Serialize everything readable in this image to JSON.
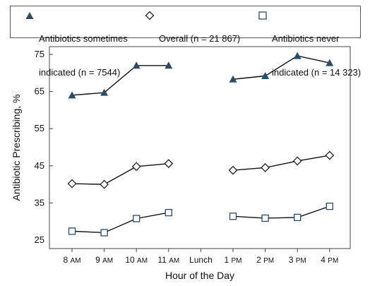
{
  "legend": {
    "sometimes": {
      "line1": "Antibiotics sometimes",
      "line2": "indicated (n = 7544)"
    },
    "overall": {
      "line1": "Overall (n = 21 867)"
    },
    "never": {
      "line1": "Antibiotics never",
      "line2": "indicated (n = 14 323)"
    }
  },
  "chart_data": {
    "type": "line",
    "xlabel": "Hour of the Day",
    "ylabel": "Antibiotic Prescribing, %",
    "categories": [
      "8 AM",
      "9 AM",
      "10 AM",
      "11 AM",
      "Lunch",
      "1 PM",
      "2 PM",
      "3 PM",
      "4 PM"
    ],
    "ylim": [
      25,
      75
    ],
    "yticks": [
      25,
      35,
      45,
      55,
      65,
      75
    ],
    "grid": false,
    "legend_position": "top",
    "series": [
      {
        "name": "Antibiotics sometimes indicated (n = 7544)",
        "marker": "triangle",
        "values": [
          64.0,
          64.7,
          72.0,
          72.0,
          null,
          68.3,
          69.2,
          74.6,
          72.7
        ]
      },
      {
        "name": "Overall (n = 21 867)",
        "marker": "diamond",
        "values": [
          40.2,
          40.0,
          44.8,
          45.6,
          null,
          43.8,
          44.5,
          46.3,
          47.8
        ]
      },
      {
        "name": "Antibiotics never indicated (n = 14 323)",
        "marker": "square",
        "values": [
          27.4,
          27.0,
          30.8,
          32.4,
          null,
          31.4,
          30.9,
          31.1,
          34.1
        ]
      }
    ]
  }
}
